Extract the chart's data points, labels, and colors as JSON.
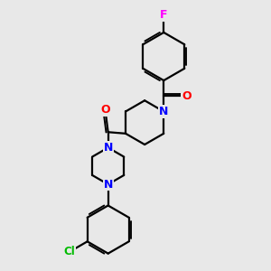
{
  "background_color": "#e8e8e8",
  "atom_colors": {
    "N": "#0000ff",
    "O": "#ff0000",
    "F": "#ff00ff",
    "Cl": "#00bb00"
  },
  "bond_color": "#000000",
  "bond_width": 1.6,
  "figsize": [
    3.0,
    3.0
  ],
  "dpi": 100,
  "xlim": [
    0.5,
    8.5
  ],
  "ylim": [
    0.2,
    9.8
  ]
}
